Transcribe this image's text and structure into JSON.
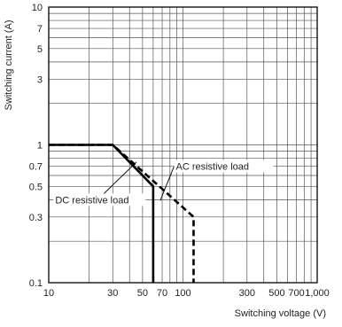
{
  "chart_data": {
    "type": "line",
    "xlabel": "Switching voltage (V)",
    "ylabel": "Switching current (A)",
    "xscale": "log",
    "yscale": "log",
    "xlim": [
      10,
      1000
    ],
    "ylim": [
      0.1,
      10
    ],
    "x_ticks": [
      {
        "value": 10,
        "label": "10"
      },
      {
        "value": 30,
        "label": "30"
      },
      {
        "value": 50,
        "label": "50"
      },
      {
        "value": 70,
        "label": "70"
      },
      {
        "value": 100,
        "label": "100"
      },
      {
        "value": 300,
        "label": "300"
      },
      {
        "value": 500,
        "label": "500"
      },
      {
        "value": 700,
        "label": "700"
      },
      {
        "value": 1000,
        "label": "1,000"
      }
    ],
    "y_ticks": [
      {
        "value": 0.1,
        "label": "0.1"
      },
      {
        "value": 0.3,
        "label": "0.3"
      },
      {
        "value": 0.5,
        "label": "0.5"
      },
      {
        "value": 0.7,
        "label": "0.7"
      },
      {
        "value": 1,
        "label": "1"
      },
      {
        "value": 3,
        "label": "3"
      },
      {
        "value": 5,
        "label": "5"
      },
      {
        "value": 7,
        "label": "7"
      },
      {
        "value": 10,
        "label": "10"
      }
    ],
    "grid": true,
    "series": [
      {
        "name": "DC resistive load",
        "style": "solid",
        "color": "#000000",
        "points": [
          [
            10,
            1
          ],
          [
            30,
            1
          ],
          [
            60,
            0.5
          ],
          [
            60,
            0.1
          ]
        ]
      },
      {
        "name": "AC resistive load",
        "style": "dashed",
        "color": "#000000",
        "points": [
          [
            10,
            1
          ],
          [
            30,
            1
          ],
          [
            120,
            0.3
          ],
          [
            120,
            0.1
          ]
        ]
      }
    ],
    "annotations": [
      {
        "text": "AC resistive load",
        "x": 100,
        "y": 0.7
      },
      {
        "text": "DC resistive load",
        "x": 27,
        "y": 0.4
      }
    ]
  }
}
